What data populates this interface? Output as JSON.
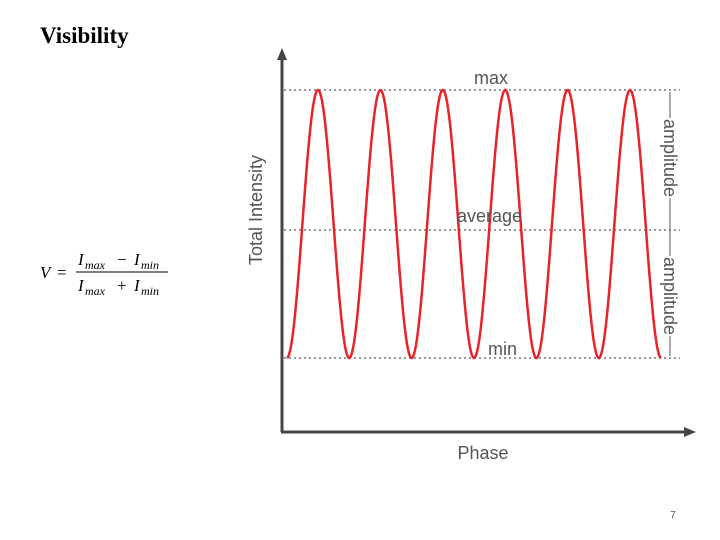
{
  "title": "Visibility",
  "formula": {
    "variable": "V",
    "equals": "=",
    "numerator": [
      [
        "I",
        "max"
      ],
      "−",
      [
        "I",
        "min"
      ]
    ],
    "denominator": [
      [
        "I",
        "max"
      ],
      "+",
      [
        "I",
        "min"
      ]
    ]
  },
  "diagram": {
    "y_axis_label": "Total Intensity",
    "x_axis_label": "Phase",
    "levels": {
      "max": "max",
      "average": "average",
      "min": "min"
    },
    "amplitude_labels": [
      "amplitude",
      "amplitude"
    ]
  },
  "page_number": "7"
}
